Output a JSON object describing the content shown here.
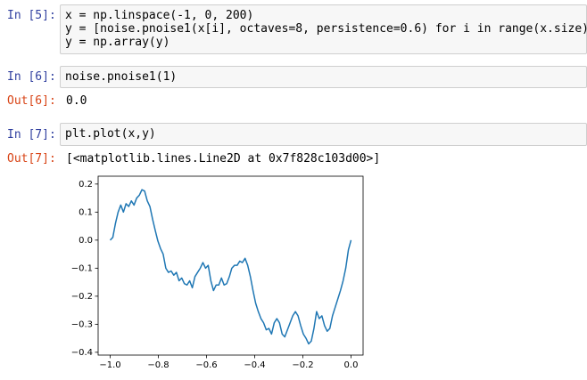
{
  "cells": [
    {
      "input_prompt": "In [5]:",
      "code": [
        "x = np.linspace(-1, 0, 200)",
        "y = [noise.pnoise1(x[i], octaves=8, persistence=0.6) for i in range(x.size)]",
        "y = np.array(y)"
      ]
    },
    {
      "input_prompt": "In [6]:",
      "code": [
        "noise.pnoise1(1)"
      ],
      "output_prompt": "Out[6]:",
      "output": "0.0"
    },
    {
      "input_prompt": "In [7]:",
      "code": [
        "plt.plot(x,y)"
      ],
      "output_prompt": "Out[7]:",
      "output": "[<matplotlib.lines.Line2D at 0x7f828c103d00>]"
    }
  ],
  "chart_data": {
    "type": "line",
    "x": [
      -1.0,
      -0.989,
      -0.978,
      -0.967,
      -0.956,
      -0.945,
      -0.934,
      -0.923,
      -0.912,
      -0.901,
      -0.89,
      -0.879,
      -0.868,
      -0.857,
      -0.846,
      -0.835,
      -0.824,
      -0.813,
      -0.802,
      -0.791,
      -0.78,
      -0.769,
      -0.758,
      -0.747,
      -0.736,
      -0.725,
      -0.714,
      -0.703,
      -0.692,
      -0.681,
      -0.67,
      -0.659,
      -0.648,
      -0.637,
      -0.626,
      -0.615,
      -0.604,
      -0.593,
      -0.582,
      -0.571,
      -0.56,
      -0.549,
      -0.538,
      -0.527,
      -0.516,
      -0.505,
      -0.495,
      -0.484,
      -0.473,
      -0.462,
      -0.451,
      -0.44,
      -0.429,
      -0.418,
      -0.407,
      -0.396,
      -0.385,
      -0.374,
      -0.363,
      -0.352,
      -0.341,
      -0.33,
      -0.319,
      -0.308,
      -0.297,
      -0.286,
      -0.275,
      -0.264,
      -0.253,
      -0.242,
      -0.231,
      -0.22,
      -0.209,
      -0.198,
      -0.187,
      -0.176,
      -0.165,
      -0.154,
      -0.143,
      -0.132,
      -0.121,
      -0.11,
      -0.099,
      -0.088,
      -0.077,
      -0.066,
      -0.055,
      -0.044,
      -0.033,
      -0.022,
      -0.011,
      0.0
    ],
    "series": [
      {
        "color": "#1f77b4",
        "values": [
          0.0,
          0.01,
          0.06,
          0.1,
          0.125,
          0.1,
          0.13,
          0.12,
          0.14,
          0.125,
          0.15,
          0.16,
          0.18,
          0.175,
          0.14,
          0.12,
          0.075,
          0.035,
          -0.003,
          -0.03,
          -0.05,
          -0.1,
          -0.115,
          -0.11,
          -0.125,
          -0.115,
          -0.145,
          -0.135,
          -0.155,
          -0.16,
          -0.145,
          -0.17,
          -0.13,
          -0.115,
          -0.1,
          -0.08,
          -0.1,
          -0.09,
          -0.145,
          -0.18,
          -0.16,
          -0.16,
          -0.135,
          -0.16,
          -0.155,
          -0.13,
          -0.1,
          -0.09,
          -0.09,
          -0.075,
          -0.08,
          -0.065,
          -0.09,
          -0.13,
          -0.18,
          -0.225,
          -0.255,
          -0.28,
          -0.295,
          -0.32,
          -0.315,
          -0.335,
          -0.295,
          -0.28,
          -0.295,
          -0.335,
          -0.345,
          -0.32,
          -0.295,
          -0.27,
          -0.255,
          -0.27,
          -0.305,
          -0.335,
          -0.35,
          -0.37,
          -0.36,
          -0.315,
          -0.255,
          -0.28,
          -0.27,
          -0.305,
          -0.325,
          -0.315,
          -0.27,
          -0.24,
          -0.21,
          -0.18,
          -0.145,
          -0.1,
          -0.035,
          0.0
        ]
      }
    ],
    "xlim": [
      -1.05,
      0.05
    ],
    "ylim": [
      -0.41,
      0.228
    ],
    "xticks": [
      {
        "value": -1.0,
        "label": "−1.0"
      },
      {
        "value": -0.8,
        "label": "−0.8"
      },
      {
        "value": -0.6,
        "label": "−0.6"
      },
      {
        "value": -0.4,
        "label": "−0.4"
      },
      {
        "value": -0.2,
        "label": "−0.2"
      },
      {
        "value": 0.0,
        "label": "0.0"
      }
    ],
    "yticks": [
      {
        "value": -0.4,
        "label": "−0.4"
      },
      {
        "value": -0.3,
        "label": "−0.3"
      },
      {
        "value": -0.2,
        "label": "−0.2"
      },
      {
        "value": -0.1,
        "label": "−0.1"
      },
      {
        "value": 0.0,
        "label": "0.0"
      },
      0.1,
      0.2
    ],
    "grid": false
  }
}
